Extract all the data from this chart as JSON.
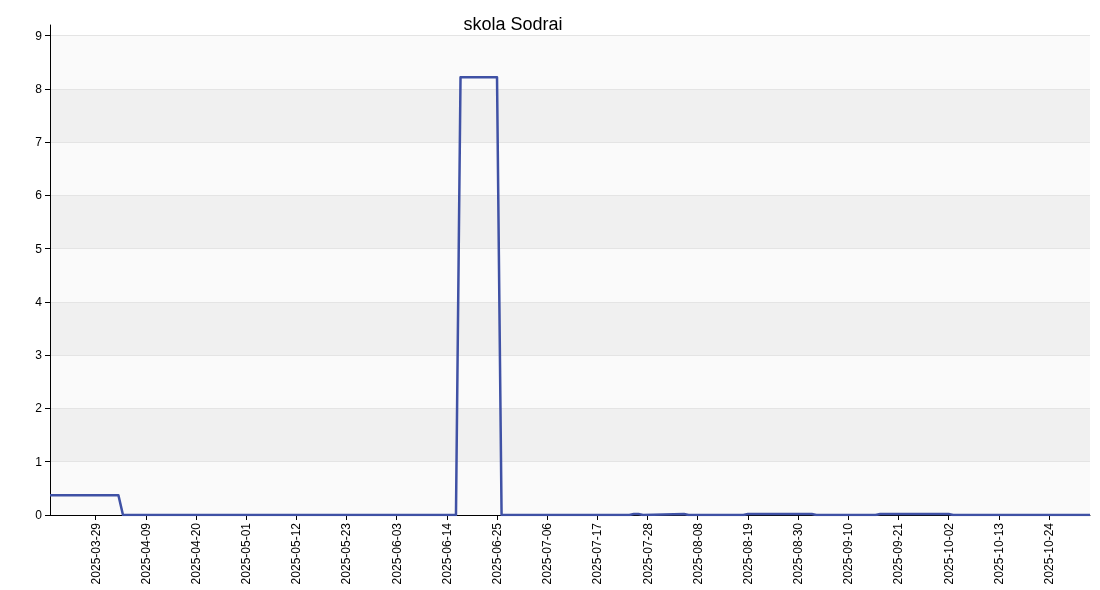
{
  "chart_data": {
    "type": "line",
    "title": "skola Sodrai",
    "x": [
      "2025-03-19",
      "2025-04-03",
      "2025-04-04",
      "2025-06-16",
      "2025-06-17",
      "2025-06-25",
      "2025-06-26",
      "2025-07-24",
      "2025-07-25",
      "2025-07-26",
      "2025-07-27",
      "2025-08-05",
      "2025-08-06",
      "2025-08-18",
      "2025-08-19",
      "2025-09-02",
      "2025-09-03",
      "2025-09-16",
      "2025-09-17",
      "2025-10-02",
      "2025-10-03",
      "2025-11-02"
    ],
    "series": [
      {
        "color": "#3f51a5",
        "values": [
          0.37,
          0.37,
          0,
          0,
          8.22,
          8.22,
          0,
          0,
          0.02,
          0.02,
          0,
          0.02,
          0,
          0,
          0.02,
          0.02,
          0,
          0,
          0.02,
          0.02,
          0,
          0
        ]
      }
    ],
    "xlim": [
      "2025-03-19",
      "2025-11-02"
    ],
    "xticks": [
      "2025-03-29",
      "2025-04-09",
      "2025-04-20",
      "2025-05-01",
      "2025-05-12",
      "2025-05-23",
      "2025-06-03",
      "2025-06-14",
      "2025-06-25",
      "2025-07-06",
      "2025-07-17",
      "2025-07-28",
      "2025-08-08",
      "2025-08-19",
      "2025-08-30",
      "2025-09-10",
      "2025-09-21",
      "2025-10-02",
      "2025-10-13",
      "2025-10-24"
    ],
    "ylim": [
      0,
      9.2
    ],
    "yticks": [
      0,
      1,
      2,
      3,
      4,
      5,
      6,
      7,
      8,
      9
    ],
    "grid": "y",
    "marker": "none",
    "line_style": "solid"
  }
}
